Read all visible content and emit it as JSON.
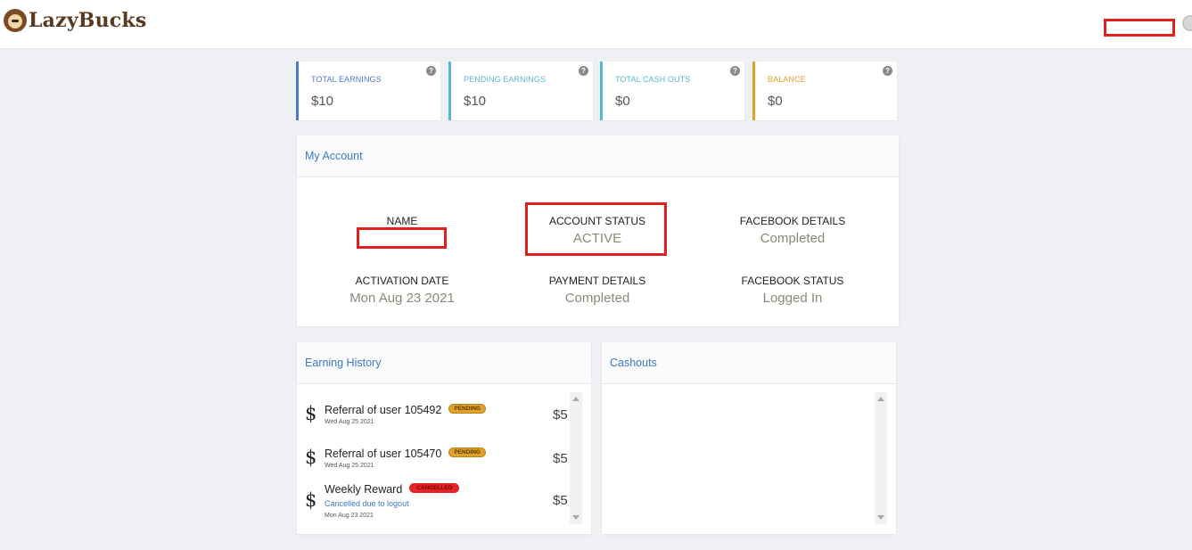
{
  "header": {
    "brand": "LazyBucks"
  },
  "stats": [
    {
      "label": "TOTAL EARNINGS",
      "value": "$10",
      "color": "#4a7dd1"
    },
    {
      "label": "PENDING EARNINGS",
      "value": "$10",
      "color": "#5ab6d6"
    },
    {
      "label": "TOTAL CASH OUTS",
      "value": "$0",
      "color": "#5ab6d6"
    },
    {
      "label": "BALANCE",
      "value": "$0",
      "color": "#e0a22c"
    }
  ],
  "account": {
    "title": "My Account",
    "name_label": "NAME",
    "status_label": "ACCOUNT STATUS",
    "status_value": "ACTIVE",
    "facebook_details_label": "FACEBOOK DETAILS",
    "facebook_details_value": "Completed",
    "activation_label": "ACTIVATION DATE",
    "activation_value": "Mon Aug 23 2021",
    "payment_label": "PAYMENT DETAILS",
    "payment_value": "Completed",
    "facebook_status_label": "FACEBOOK STATUS",
    "facebook_status_value": "Logged In"
  },
  "earning_history": {
    "title": "Earning History",
    "items": [
      {
        "title": "Referral of user 105492",
        "badge": "PENDING",
        "date": "Wed Aug 25 2021",
        "amount": "$5"
      },
      {
        "title": "Referral of user 105470",
        "badge": "PENDING",
        "date": "Wed Aug 25 2021",
        "amount": "$5"
      },
      {
        "title": "Weekly Reward",
        "badge": "CANCELLED",
        "note": "Cancelled due to logout",
        "date": "Mon Aug 23 2021",
        "amount": "$5"
      }
    ]
  },
  "cashouts": {
    "title": "Cashouts"
  }
}
